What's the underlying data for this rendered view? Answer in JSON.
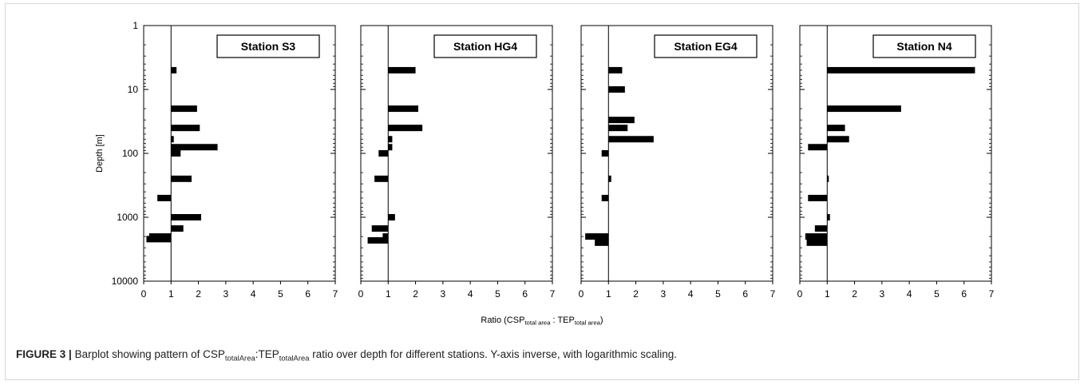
{
  "figure": {
    "label": "FIGURE 3 |",
    "caption_parts": {
      "p1": "Barplot showing pattern of CSP",
      "s1": "totalArea",
      "p2": ":TEP",
      "s2": "totalArea",
      "p3": " ratio over depth for different stations. Y-axis inverse, with logarithmic scaling."
    }
  },
  "axes": {
    "ylabel": "Depth [m]",
    "xlabel_parts": {
      "a": "Ratio (CSP",
      "b": "total area",
      "c": " : TEP",
      "d": "total area",
      "e": ")"
    },
    "y_tick_labels": [
      "1",
      "10",
      "100",
      "1000",
      "10000"
    ],
    "x_tick_labels": [
      "0",
      "1",
      "2",
      "3",
      "4",
      "5",
      "6",
      "7"
    ]
  },
  "chart_data": [
    {
      "type": "bar",
      "orientation": "horizontal",
      "title": "Station S3",
      "xlim": [
        0,
        7
      ],
      "ylim": [
        1,
        10000
      ],
      "y_scale": "log-inverted",
      "reference_line_x": 1,
      "bars": [
        {
          "depth": 5,
          "value": 1.2
        },
        {
          "depth": 20,
          "value": 1.95
        },
        {
          "depth": 40,
          "value": 2.05
        },
        {
          "depth": 60,
          "value": 1.1
        },
        {
          "depth": 80,
          "value": 2.7
        },
        {
          "depth": 100,
          "value": 1.35
        },
        {
          "depth": 250,
          "value": 1.75
        },
        {
          "depth": 500,
          "value": 0.5
        },
        {
          "depth": 1000,
          "value": 2.1
        },
        {
          "depth": 1500,
          "value": 1.45
        },
        {
          "depth": 2000,
          "value": 0.2
        },
        {
          "depth": 2200,
          "value": 0.1
        }
      ]
    },
    {
      "type": "bar",
      "orientation": "horizontal",
      "title": "Station HG4",
      "xlim": [
        0,
        7
      ],
      "ylim": [
        1,
        10000
      ],
      "y_scale": "log-inverted",
      "reference_line_x": 1,
      "bars": [
        {
          "depth": 5,
          "value": 2.0
        },
        {
          "depth": 20,
          "value": 2.1
        },
        {
          "depth": 40,
          "value": 2.25
        },
        {
          "depth": 60,
          "value": 1.15
        },
        {
          "depth": 80,
          "value": 1.15
        },
        {
          "depth": 100,
          "value": 0.65
        },
        {
          "depth": 250,
          "value": 0.5
        },
        {
          "depth": 1000,
          "value": 1.25
        },
        {
          "depth": 1500,
          "value": 0.4
        },
        {
          "depth": 2000,
          "value": 0.8
        },
        {
          "depth": 2300,
          "value": 0.25
        }
      ]
    },
    {
      "type": "bar",
      "orientation": "horizontal",
      "title": "Station EG4",
      "xlim": [
        0,
        7
      ],
      "ylim": [
        1,
        10000
      ],
      "y_scale": "log-inverted",
      "reference_line_x": 1,
      "bars": [
        {
          "depth": 5,
          "value": 1.5
        },
        {
          "depth": 10,
          "value": 1.6
        },
        {
          "depth": 30,
          "value": 1.95
        },
        {
          "depth": 40,
          "value": 1.7
        },
        {
          "depth": 60,
          "value": 2.65
        },
        {
          "depth": 100,
          "value": 0.75
        },
        {
          "depth": 250,
          "value": 1.1
        },
        {
          "depth": 500,
          "value": 0.75
        },
        {
          "depth": 2000,
          "value": 0.15
        },
        {
          "depth": 2500,
          "value": 0.5
        }
      ]
    },
    {
      "type": "bar",
      "orientation": "horizontal",
      "title": "Station N4",
      "xlim": [
        0,
        7
      ],
      "ylim": [
        1,
        10000
      ],
      "y_scale": "log-inverted",
      "reference_line_x": 1,
      "bars": [
        {
          "depth": 5,
          "value": 6.4
        },
        {
          "depth": 20,
          "value": 3.7
        },
        {
          "depth": 40,
          "value": 1.65
        },
        {
          "depth": 60,
          "value": 1.8
        },
        {
          "depth": 80,
          "value": 0.3
        },
        {
          "depth": 250,
          "value": 1.02
        },
        {
          "depth": 500,
          "value": 0.3
        },
        {
          "depth": 1000,
          "value": 1.1
        },
        {
          "depth": 1500,
          "value": 0.55
        },
        {
          "depth": 2000,
          "value": 0.2
        },
        {
          "depth": 2500,
          "value": 0.25
        }
      ]
    }
  ]
}
